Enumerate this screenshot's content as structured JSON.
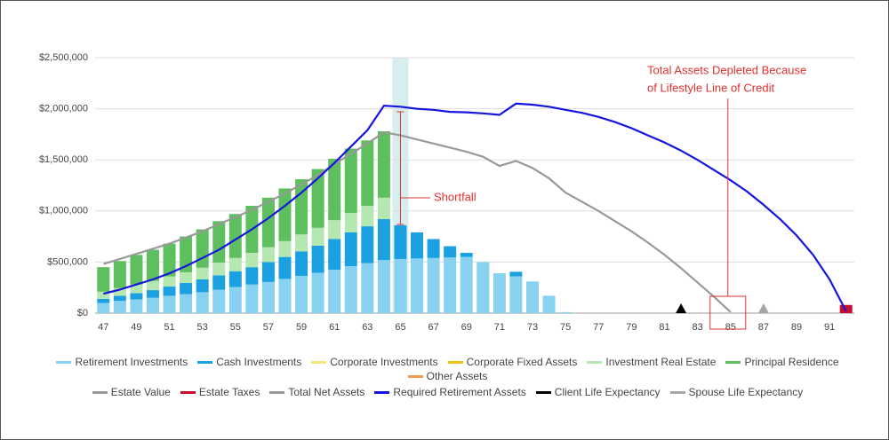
{
  "chart_data": {
    "type": "bar",
    "categories": [
      "47",
      null,
      "49",
      null,
      "51",
      null,
      "53",
      null,
      "55",
      null,
      "57",
      null,
      "59",
      null,
      "61",
      null,
      "63",
      null,
      "65",
      null,
      "67",
      null,
      "69",
      null,
      "71",
      null,
      "73",
      null,
      "75",
      null,
      "77",
      null,
      "79",
      null,
      "81",
      null,
      "83",
      null,
      "85",
      null,
      "87",
      null,
      "89",
      null,
      "91",
      null
    ],
    "ylim": [
      0,
      2500000
    ],
    "yticks": [
      {
        "value": 0,
        "label": "$0"
      },
      {
        "value": 500000,
        "label": "$500,000"
      },
      {
        "value": 1000000,
        "label": "$1,000,000"
      },
      {
        "value": 1500000,
        "label": "$1,500,000"
      },
      {
        "value": 2000000,
        "label": "$2,000,000"
      },
      {
        "value": 2500000,
        "label": "$2,500,000"
      }
    ],
    "grid": true,
    "annotations": [
      {
        "text": "Shortfall"
      },
      {
        "text": [
          "Total Assets Depleted Because",
          "of Lifestyle Line of Credit"
        ]
      }
    ],
    "series": [
      {
        "name": "Retirement Investments",
        "type": "bar",
        "color": "#87d2f0",
        "values": [
          100000,
          120000,
          135000,
          150000,
          170000,
          185000,
          205000,
          230000,
          255000,
          280000,
          305000,
          335000,
          365000,
          395000,
          425000,
          460000,
          490000,
          520000,
          530000,
          535000,
          540000,
          545000,
          550000,
          500000,
          390000,
          360000,
          310000,
          170000,
          10000,
          0,
          0,
          0,
          0,
          0,
          0,
          0,
          0,
          0,
          0,
          0,
          0,
          0,
          0,
          0,
          0,
          0
        ]
      },
      {
        "name": "Cash Investments",
        "type": "bar",
        "color": "#1ba1e2",
        "values": [
          40000,
          50000,
          60000,
          75000,
          90000,
          110000,
          125000,
          140000,
          155000,
          170000,
          195000,
          215000,
          240000,
          265000,
          300000,
          330000,
          360000,
          400000,
          330000,
          255000,
          185000,
          110000,
          40000,
          0,
          0,
          45000,
          0,
          0,
          0,
          0,
          0,
          0,
          0,
          0,
          0,
          0,
          0,
          0,
          0,
          0,
          0,
          0,
          0,
          0,
          0,
          0
        ]
      },
      {
        "name": "Corporate Investments",
        "type": "bar",
        "color": "#f3e77a",
        "values": [
          0,
          0,
          0,
          0,
          0,
          0,
          0,
          0,
          0,
          0,
          0,
          0,
          0,
          0,
          0,
          0,
          0,
          0,
          0,
          0,
          0,
          0,
          0,
          0,
          0,
          0,
          0,
          0,
          0,
          0,
          0,
          0,
          0,
          0,
          0,
          0,
          0,
          0,
          0,
          0,
          0,
          0,
          0,
          0,
          0,
          0
        ]
      },
      {
        "name": "Corporate Fixed Assets",
        "type": "bar",
        "color": "#f1c40f",
        "values": [
          0,
          0,
          0,
          0,
          0,
          0,
          0,
          0,
          0,
          0,
          0,
          0,
          0,
          0,
          0,
          0,
          0,
          0,
          0,
          0,
          0,
          0,
          0,
          0,
          0,
          0,
          0,
          0,
          0,
          0,
          0,
          0,
          0,
          0,
          0,
          0,
          0,
          0,
          0,
          0,
          0,
          0,
          0,
          0,
          0,
          0
        ]
      },
      {
        "name": "Investment Real Estate",
        "type": "bar",
        "color": "#b5e7b0",
        "values": [
          70000,
          75000,
          85000,
          90000,
          100000,
          105000,
          115000,
          125000,
          130000,
          140000,
          145000,
          155000,
          165000,
          175000,
          185000,
          190000,
          200000,
          210000,
          0,
          0,
          0,
          0,
          0,
          0,
          0,
          0,
          0,
          0,
          0,
          0,
          0,
          0,
          0,
          0,
          0,
          0,
          0,
          0,
          0,
          0,
          0,
          0,
          0,
          0,
          0,
          0
        ]
      },
      {
        "name": "Principal Residence",
        "type": "bar",
        "color": "#5dbf5d",
        "values": [
          240000,
          265000,
          290000,
          305000,
          320000,
          350000,
          375000,
          405000,
          430000,
          460000,
          485000,
          515000,
          540000,
          575000,
          600000,
          630000,
          640000,
          650000,
          0,
          0,
          0,
          0,
          0,
          0,
          0,
          0,
          0,
          0,
          0,
          0,
          0,
          0,
          0,
          0,
          0,
          0,
          0,
          0,
          0,
          0,
          0,
          0,
          0,
          0,
          0,
          0
        ]
      },
      {
        "name": "Other Assets",
        "type": "bar",
        "color": "#f39a4c",
        "values": [
          0,
          0,
          0,
          0,
          0,
          0,
          0,
          0,
          0,
          0,
          0,
          0,
          0,
          0,
          0,
          0,
          0,
          0,
          0,
          0,
          0,
          0,
          0,
          0,
          0,
          0,
          0,
          0,
          0,
          0,
          0,
          0,
          0,
          0,
          0,
          0,
          0,
          0,
          0,
          0,
          0,
          0,
          0,
          0,
          0,
          0
        ]
      },
      {
        "name": "Estate Value",
        "type": "line",
        "color": "#999999",
        "values": [
          null,
          null,
          null,
          null,
          null,
          null,
          null,
          null,
          null,
          null,
          null,
          null,
          null,
          null,
          null,
          null,
          null,
          null,
          null,
          null,
          null,
          null,
          null,
          null,
          null,
          null,
          null,
          null,
          null,
          null,
          null,
          null,
          null,
          null,
          null,
          null,
          null,
          null,
          null,
          null,
          null,
          null,
          null,
          null,
          null,
          null
        ]
      },
      {
        "name": "Estate Taxes",
        "type": "bar",
        "color": "#c8102e",
        "values": [
          0,
          0,
          0,
          0,
          0,
          0,
          0,
          0,
          0,
          0,
          0,
          0,
          0,
          0,
          0,
          0,
          0,
          0,
          0,
          0,
          0,
          0,
          0,
          0,
          0,
          0,
          0,
          0,
          0,
          0,
          0,
          0,
          0,
          0,
          0,
          0,
          0,
          0,
          0,
          0,
          0,
          0,
          0,
          0,
          0,
          80000
        ]
      },
      {
        "name": "Total Net Assets",
        "type": "line",
        "color": "#999999",
        "values": [
          480000,
          530000,
          580000,
          630000,
          680000,
          740000,
          800000,
          870000,
          940000,
          1010000,
          1090000,
          1170000,
          1260000,
          1350000,
          1460000,
          1560000,
          1660000,
          1770000,
          1740000,
          1700000,
          1660000,
          1620000,
          1580000,
          1530000,
          1440000,
          1490000,
          1420000,
          1320000,
          1180000,
          1090000,
          1000000,
          900000,
          800000,
          690000,
          570000,
          440000,
          300000,
          160000,
          10000,
          null,
          null,
          null,
          null,
          null,
          null,
          null
        ]
      },
      {
        "name": "Required Retirement Assets",
        "type": "line",
        "color": "#1515e0",
        "values": [
          190000,
          230000,
          280000,
          330000,
          390000,
          460000,
          540000,
          620000,
          720000,
          820000,
          930000,
          1050000,
          1180000,
          1320000,
          1470000,
          1630000,
          1790000,
          2030000,
          2020000,
          2000000,
          1990000,
          1970000,
          1965000,
          1955000,
          1940000,
          2050000,
          2040000,
          2020000,
          1990000,
          1960000,
          1920000,
          1870000,
          1810000,
          1740000,
          1670000,
          1590000,
          1500000,
          1400000,
          1300000,
          1190000,
          1060000,
          920000,
          760000,
          570000,
          330000,
          20000
        ]
      },
      {
        "name": "Client Life Expectancy",
        "type": "marker",
        "color": "#000000",
        "values": [
          null,
          null,
          null,
          null,
          null,
          null,
          null,
          null,
          null,
          null,
          null,
          null,
          null,
          null,
          null,
          null,
          null,
          null,
          null,
          null,
          null,
          null,
          null,
          null,
          null,
          null,
          null,
          null,
          null,
          null,
          null,
          null,
          null,
          null,
          null,
          0,
          null,
          null,
          null,
          null,
          null,
          null,
          null,
          null,
          null,
          null
        ]
      },
      {
        "name": "Spouse Life Expectancy",
        "type": "marker",
        "color": "#a6a6a6",
        "values": [
          null,
          null,
          null,
          null,
          null,
          null,
          null,
          null,
          null,
          null,
          null,
          null,
          null,
          null,
          null,
          null,
          null,
          null,
          null,
          null,
          null,
          null,
          null,
          null,
          null,
          null,
          null,
          null,
          null,
          null,
          null,
          null,
          null,
          null,
          null,
          null,
          null,
          null,
          null,
          null,
          0,
          null,
          null,
          null,
          null,
          null
        ]
      }
    ]
  }
}
